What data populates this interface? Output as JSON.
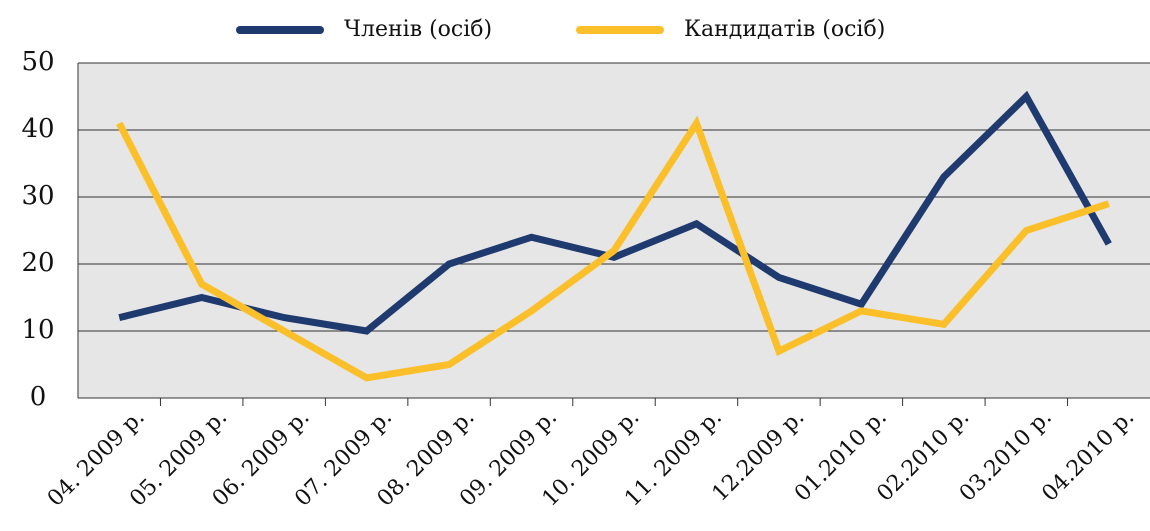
{
  "chart_data": {
    "type": "line",
    "categories": [
      "04. 2009 р.",
      "05. 2009 р.",
      "06. 2009 р.",
      "07. 2009 р.",
      "08. 2009 р.",
      "09. 2009 р.",
      "10. 2009 р.",
      "11. 2009 р.",
      "12.2009 р.",
      "01.2010 р.",
      "02.2010 р.",
      "03.2010 р.",
      "04.2010 р."
    ],
    "series": [
      {
        "name": "Членів (осіб)",
        "color": "#1f3a6e",
        "values": [
          12,
          15,
          12,
          10,
          20,
          24,
          21,
          26,
          18,
          14,
          33,
          45,
          23
        ]
      },
      {
        "name": "Кандидатів (осіб)",
        "color": "#fbbf2a",
        "values": [
          41,
          17,
          10,
          3,
          5,
          13,
          22,
          41,
          7,
          13,
          11,
          25,
          29
        ]
      }
    ],
    "ylim": [
      0,
      50
    ],
    "yticks": [
      0,
      10,
      20,
      30,
      40,
      50
    ],
    "grid": true,
    "legend": "top"
  }
}
